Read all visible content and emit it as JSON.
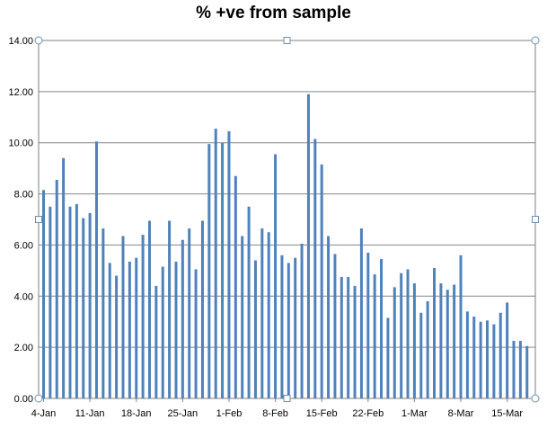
{
  "chart_data": {
    "type": "bar",
    "title": "% +ve from sample",
    "xlabel": "",
    "ylabel": "",
    "ylim": [
      0,
      14
    ],
    "grid": true,
    "y_ticks": [
      "0.00",
      "2.00",
      "4.00",
      "6.00",
      "8.00",
      "10.00",
      "12.00",
      "14.00"
    ],
    "x_tick_labels": [
      "4-Jan",
      "11-Jan",
      "18-Jan",
      "25-Jan",
      "1-Feb",
      "8-Feb",
      "15-Feb",
      "22-Feb",
      "1-Mar",
      "8-Mar",
      "15-Mar"
    ],
    "bar_color": "#4f81bd",
    "categories": [
      "4-Jan",
      "5-Jan",
      "6-Jan",
      "7-Jan",
      "8-Jan",
      "9-Jan",
      "10-Jan",
      "11-Jan",
      "12-Jan",
      "13-Jan",
      "14-Jan",
      "15-Jan",
      "16-Jan",
      "17-Jan",
      "18-Jan",
      "19-Jan",
      "20-Jan",
      "21-Jan",
      "22-Jan",
      "23-Jan",
      "24-Jan",
      "25-Jan",
      "26-Jan",
      "27-Jan",
      "28-Jan",
      "29-Jan",
      "30-Jan",
      "31-Jan",
      "1-Feb",
      "2-Feb",
      "3-Feb",
      "4-Feb",
      "5-Feb",
      "6-Feb",
      "7-Feb",
      "8-Feb",
      "9-Feb",
      "10-Feb",
      "11-Feb",
      "12-Feb",
      "13-Feb",
      "14-Feb",
      "15-Feb",
      "16-Feb",
      "17-Feb",
      "18-Feb",
      "19-Feb",
      "20-Feb",
      "21-Feb",
      "22-Feb",
      "23-Feb",
      "24-Feb",
      "25-Feb",
      "26-Feb",
      "27-Feb",
      "28-Feb",
      "1-Mar",
      "2-Mar",
      "3-Mar",
      "4-Mar",
      "5-Mar",
      "6-Mar",
      "7-Mar",
      "8-Mar",
      "9-Mar",
      "10-Mar",
      "11-Mar",
      "12-Mar",
      "13-Mar",
      "14-Mar",
      "15-Mar",
      "16-Mar",
      "17-Mar",
      "18-Mar",
      "19-Mar"
    ],
    "values": [
      8.15,
      7.5,
      8.55,
      9.4,
      7.5,
      7.6,
      7.05,
      7.25,
      10.05,
      6.65,
      5.3,
      4.8,
      6.35,
      5.35,
      5.5,
      6.4,
      6.95,
      4.4,
      5.15,
      6.95,
      5.35,
      6.2,
      6.65,
      5.05,
      6.95,
      9.95,
      10.55,
      10.0,
      10.45,
      8.7,
      6.35,
      7.5,
      5.4,
      6.65,
      6.5,
      9.55,
      5.6,
      5.3,
      5.5,
      6.05,
      11.9,
      10.15,
      9.15,
      6.35,
      5.65,
      4.75,
      4.75,
      4.4,
      6.65,
      5.7,
      4.85,
      5.45,
      3.15,
      4.35,
      4.9,
      5.05,
      4.5,
      3.35,
      3.8,
      5.1,
      4.5,
      4.25,
      4.45,
      5.6,
      3.4,
      3.2,
      3.0,
      3.05,
      2.9,
      3.35,
      3.75,
      2.25,
      2.25,
      2.05,
      0
    ]
  }
}
